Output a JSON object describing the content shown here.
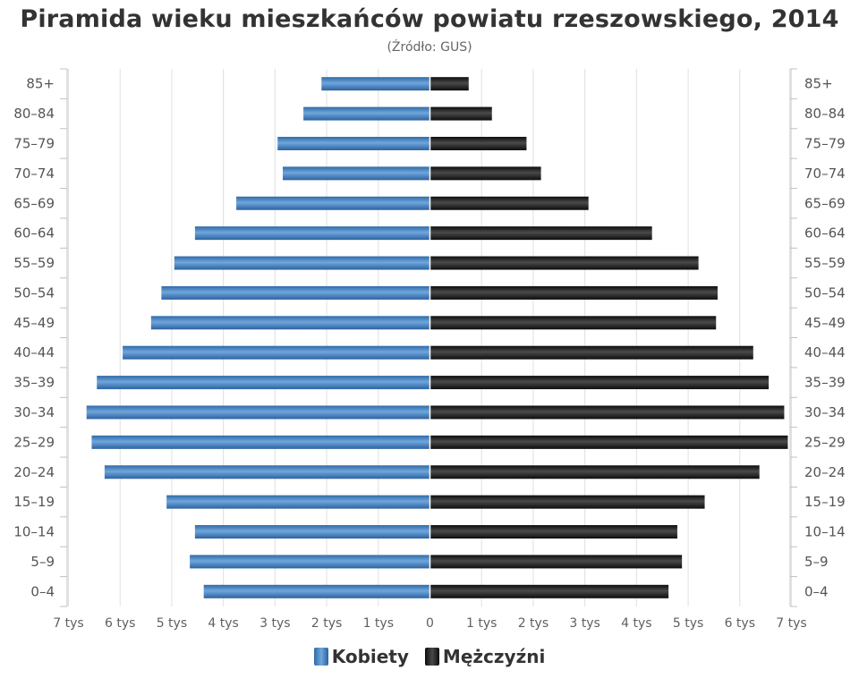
{
  "header": {
    "title": "Piramida wieku mieszkańców powiatu rzeszowskiego, 2014",
    "subtitle": "(Źródło: GUS)"
  },
  "colors": {
    "female": "#3a78b8",
    "male": "#1a1a1a",
    "grid": "#e0e0e0"
  },
  "chart_data": {
    "type": "bar",
    "orientation": "horizontal",
    "title": "Piramida wieku mieszkańców powiatu rzeszowskiego, 2014",
    "subtitle": "(Źródło: GUS)",
    "categories": [
      "85+",
      "80-84",
      "75-79",
      "70-74",
      "65-69",
      "60-64",
      "55-59",
      "50-54",
      "45-49",
      "40-44",
      "35-39",
      "30-34",
      "25-29",
      "20-24",
      "15-19",
      "10-14",
      "5-9",
      "0-4"
    ],
    "category_labels": [
      "85+",
      "80–84",
      "75–79",
      "70–74",
      "65–69",
      "60–64",
      "55–59",
      "50–54",
      "45–49",
      "40–44",
      "35–39",
      "30–34",
      "25–29",
      "20–24",
      "15–19",
      "10–14",
      "5–9",
      "0–4"
    ],
    "x_ticks": [
      "7 tys",
      "6 tys",
      "5 tys",
      "4 tys",
      "3 tys",
      "2 tys",
      "1 tys",
      "0",
      "1 tys",
      "2 tys",
      "3 tys",
      "4 tys",
      "5 tys",
      "6 tys",
      "7 tys"
    ],
    "xlim": [
      -7000,
      7000
    ],
    "series": [
      {
        "name": "Kobiety",
        "values": [
          2100,
          2450,
          2950,
          2850,
          3750,
          4550,
          4950,
          5200,
          5400,
          5950,
          6450,
          6650,
          6550,
          6300,
          5100,
          4550,
          4650,
          4380
        ]
      },
      {
        "name": "Mężczyźni",
        "values": [
          750,
          1200,
          1870,
          2150,
          3070,
          4300,
          5200,
          5570,
          5540,
          6260,
          6560,
          6860,
          6930,
          6380,
          5320,
          4790,
          4880,
          4620
        ]
      }
    ],
    "legend_position": "bottom-center",
    "grid": true
  }
}
